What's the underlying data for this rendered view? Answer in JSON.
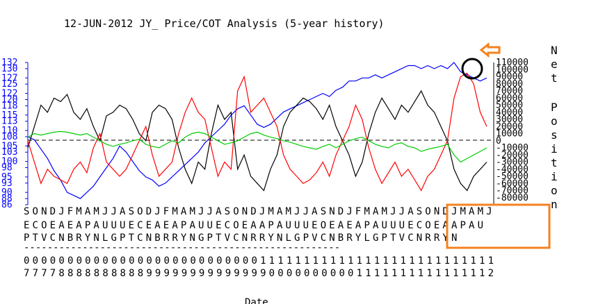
{
  "chart_data": {
    "type": "line",
    "title": "12-JUN-2012 JY_ Price/COT Analysis (5-year history)",
    "xlabel": "Date",
    "ylabel_right": "Net Position",
    "left_axis": {
      "ticks": [
        86,
        88,
        90,
        93,
        95,
        98,
        100,
        103,
        105,
        108,
        110,
        113,
        115,
        118,
        120,
        122,
        125,
        127,
        130,
        132
      ],
      "ylim": [
        86,
        132
      ],
      "color": "#0000ff"
    },
    "right_axis": {
      "ticks": [
        -80000,
        -70000,
        -60000,
        -50000,
        -40000,
        -30000,
        -20000,
        -10000,
        0,
        10000,
        20000,
        30000,
        40000,
        50000,
        60000,
        70000,
        80000,
        90000,
        100000,
        110000
      ],
      "ylim": [
        -90000,
        110000
      ]
    },
    "x_labels": {
      "months": [
        "S",
        "O",
        "N",
        "D",
        "J",
        "F",
        "M",
        "A",
        "M",
        "J",
        "J",
        "A",
        "S",
        "O",
        "D",
        "J",
        "F",
        "M",
        "A",
        "M",
        "J",
        "J",
        "A",
        "S",
        "O",
        "N",
        "D",
        "J",
        "M",
        "A",
        "M",
        "J",
        "J",
        "A",
        "S",
        "N",
        "D",
        "J",
        "F",
        "M",
        "A",
        "M",
        "J",
        "J",
        "A",
        "S",
        "O",
        "N",
        "D",
        "J",
        "M",
        "A",
        "M",
        "J"
      ],
      "row2": [
        "E",
        "C",
        "O",
        "E",
        "A",
        "E",
        "A",
        "P",
        "A",
        "U",
        "U",
        "U",
        "E",
        "C",
        "E",
        "A",
        "E",
        "A",
        "P",
        "A",
        "U",
        "U",
        "E",
        "C",
        "O",
        "E",
        "A",
        "A",
        "P",
        "A",
        "U",
        "U",
        "U",
        "E",
        "O",
        "E",
        "A",
        "E",
        "A",
        "P",
        "A",
        "U",
        "U",
        "U",
        "E",
        "C",
        "O",
        "E",
        "A",
        "A",
        "P",
        "A",
        "U"
      ],
      "row3": [
        "P",
        "T",
        "V",
        "C",
        "N",
        "B",
        "R",
        "Y",
        "N",
        "L",
        "G",
        "P",
        "T",
        "C",
        "N",
        "B",
        "R",
        "R",
        "Y",
        "N",
        "G",
        "P",
        "T",
        "V",
        "C",
        "N",
        "R",
        "R",
        "Y",
        "N",
        "L",
        "G",
        "P",
        "V",
        "C",
        "N",
        "B",
        "R",
        "Y",
        "L",
        "G",
        "P",
        "T",
        "V",
        "C",
        "N",
        "R",
        "R",
        "Y",
        "N"
      ],
      "separator": "------------------------------------------------------------",
      "year_row1": "000000000000000000000000000111111111111111111111111111111111",
      "year_row2": "777788888888889999999999999900000000001111111111111112222 2"
    },
    "series": [
      {
        "name": "Price",
        "axis": "left",
        "color": "#0000ff",
        "values": [
          108,
          107,
          104,
          101,
          97,
          94,
          90,
          89,
          88,
          90,
          92,
          95,
          98,
          101,
          105,
          103,
          100,
          97,
          95,
          94,
          92,
          93,
          95,
          97,
          99,
          101,
          103,
          106,
          108,
          110,
          112,
          115,
          117,
          118,
          115,
          112,
          111,
          112,
          114,
          116,
          117,
          118,
          119,
          120,
          121,
          122,
          121,
          123,
          124,
          126,
          126,
          127,
          127,
          128,
          127,
          128,
          129,
          130,
          131,
          131,
          130,
          131,
          130,
          131,
          130,
          132,
          129,
          128,
          127,
          126,
          127
        ]
      },
      {
        "name": "Commercials",
        "axis": "right",
        "color": "#000000",
        "values": [
          -10000,
          20000,
          50000,
          40000,
          60000,
          55000,
          65000,
          40000,
          30000,
          45000,
          20000,
          0,
          35000,
          40000,
          50000,
          45000,
          30000,
          10000,
          0,
          40000,
          50000,
          45000,
          30000,
          -10000,
          -40000,
          -60000,
          -30000,
          -40000,
          10000,
          50000,
          30000,
          40000,
          -40000,
          -20000,
          -50000,
          -60000,
          -70000,
          -40000,
          -20000,
          20000,
          40000,
          50000,
          60000,
          55000,
          45000,
          30000,
          50000,
          20000,
          0,
          -20000,
          -50000,
          -30000,
          10000,
          40000,
          60000,
          45000,
          30000,
          50000,
          40000,
          55000,
          70000,
          50000,
          40000,
          20000,
          0,
          -40000,
          -60000,
          -70000,
          -50000,
          -40000,
          -30000
        ]
      },
      {
        "name": "Large Specs",
        "axis": "right",
        "color": "#ff0000",
        "values": [
          0,
          -30000,
          -60000,
          -40000,
          -50000,
          -55000,
          -60000,
          -40000,
          -30000,
          -45000,
          -10000,
          10000,
          -30000,
          -40000,
          -50000,
          -40000,
          -20000,
          0,
          20000,
          -20000,
          -50000,
          -40000,
          -30000,
          10000,
          40000,
          60000,
          40000,
          30000,
          -10000,
          -50000,
          -30000,
          -40000,
          70000,
          90000,
          40000,
          50000,
          60000,
          40000,
          20000,
          -20000,
          -40000,
          -50000,
          -60000,
          -55000,
          -45000,
          -30000,
          -50000,
          -20000,
          0,
          20000,
          50000,
          30000,
          -10000,
          -40000,
          -60000,
          -45000,
          -30000,
          -50000,
          -40000,
          -55000,
          -70000,
          -50000,
          -40000,
          -20000,
          0,
          60000,
          90000,
          95000,
          80000,
          40000,
          20000
        ]
      },
      {
        "name": "Small Specs",
        "axis": "right",
        "color": "#00cc00",
        "values": [
          5000,
          10000,
          8000,
          10000,
          12000,
          13000,
          12000,
          10000,
          8000,
          10000,
          5000,
          0,
          -5000,
          -8000,
          -5000,
          -3000,
          0,
          2000,
          -5000,
          -8000,
          -10000,
          -5000,
          0,
          -3000,
          5000,
          10000,
          12000,
          10000,
          5000,
          0,
          -5000,
          -3000,
          0,
          5000,
          10000,
          12000,
          8000,
          5000,
          3000,
          0,
          -2000,
          -5000,
          -8000,
          -10000,
          -12000,
          -8000,
          -5000,
          -10000,
          -5000,
          0,
          3000,
          5000,
          0,
          -5000,
          -8000,
          -10000,
          -5000,
          -3000,
          -8000,
          -10000,
          -15000,
          -12000,
          -10000,
          -8000,
          -5000,
          -20000,
          -30000,
          -25000,
          -20000,
          -15000,
          -10000
        ]
      }
    ],
    "zero_line": "dashed"
  },
  "colors": {
    "price": "#0000ff",
    "commercials": "#000000",
    "large_specs": "#ff0000",
    "small_specs": "#00cc00",
    "highlight": "#f5821f"
  }
}
